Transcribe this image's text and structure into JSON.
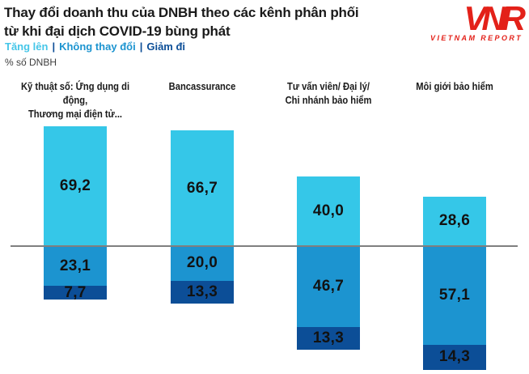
{
  "header": {
    "title_line1": "Thay đổi doanh thu của DNBH theo các kênh phân phối",
    "title_line2": "từ khi đại dịch COVID-19 bùng phát",
    "unit_label": "% số DNBH"
  },
  "legend": {
    "separator": "|",
    "items": [
      {
        "label": "Tăng lên",
        "color": "#45C6E8"
      },
      {
        "label": "Không thay đổi",
        "color": "#1C94D0"
      },
      {
        "label": "Giảm đi",
        "color": "#0C4E97"
      }
    ]
  },
  "logo": {
    "acronym": "VNR",
    "text": "VIETNAM REPORT",
    "color": "#E32119"
  },
  "chart_data": {
    "type": "bar",
    "subtype": "diverging-stacked-column",
    "title": "Thay đổi doanh thu của DNBH theo các kênh phân phối từ khi đại dịch COVID-19 bùng phát",
    "ylabel": "% số DNBH",
    "grid": false,
    "legend_position": "top-left",
    "categories": [
      "Kỹ thuật số: Ứng dụng di động, Thương mại điện tử...",
      "Bancassurance",
      "Tư vấn viên/ Đại lý/ Chi nhánh bảo hiểm",
      "Môi giới bảo hiểm"
    ],
    "category_label_lines": [
      [
        "Kỹ thuật số: Ứng dụng di động,",
        "Thương mại điện tử..."
      ],
      [
        "Bancassurance"
      ],
      [
        "Tư vấn viên/ Đại lý/",
        "Chi nhánh bảo hiểm"
      ],
      [
        "Môi giới bảo hiểm"
      ]
    ],
    "series": [
      {
        "name": "Tăng lên",
        "key": "increase",
        "direction": "up",
        "color": "#35C7E8",
        "values": [
          69.2,
          66.7,
          40.0,
          28.6
        ],
        "labels": [
          "69,2",
          "66,7",
          "40,0",
          "28,6"
        ]
      },
      {
        "name": "Không thay đổi",
        "key": "no-change",
        "direction": "down",
        "color": "#1C94D0",
        "values": [
          23.1,
          20.0,
          46.7,
          57.1
        ],
        "labels": [
          "23,1",
          "20,0",
          "46,7",
          "57,1"
        ]
      },
      {
        "name": "Giảm đi",
        "key": "decrease",
        "direction": "down",
        "color": "#0C4E97",
        "values": [
          7.7,
          13.3,
          13.3,
          14.3
        ],
        "labels": [
          "7,7",
          "13,3",
          "13,3",
          "14,3"
        ]
      }
    ],
    "value_label_color": "#121212",
    "baseline_color": "#7F7F7F"
  }
}
